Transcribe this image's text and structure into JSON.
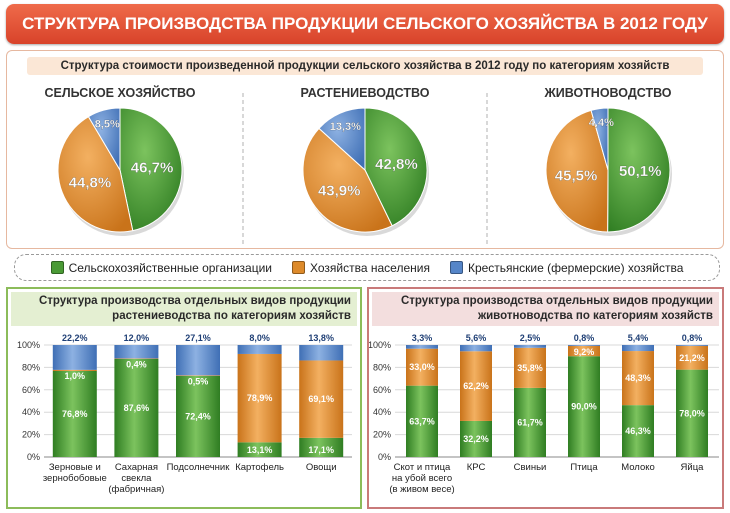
{
  "title": "СТРУКТУРА ПРОИЗВОДСТВА ПРОДУКЦИИ СЕЛЬСКОГО ХОЗЯЙСТВА В 2012 ГОДУ",
  "top_subtitle": "Структура стоимости произведенной продукции сельского хозяйства в 2012 году по категориям хозяйств",
  "colors": {
    "green": "#4a9a35",
    "orange": "#dd8a2a",
    "blue": "#5585c8"
  },
  "legend": [
    {
      "label": "Сельскохозяйственные организации",
      "color": "#4a9a35"
    },
    {
      "label": "Хозяйства населения",
      "color": "#dd8a2a"
    },
    {
      "label": "Крестьянские (фермерские) хозяйства",
      "color": "#5585c8"
    }
  ],
  "left_panel": {
    "title_line1": "Структура  производства отдельных видов продукции",
    "title_line2": "растениеводства по категориям хозяйств"
  },
  "right_panel": {
    "title_line1": "Структура  производства отдельных видов продукции",
    "title_line2": "животноводства по категориям хозяйств"
  },
  "chart_data": [
    {
      "type": "pie",
      "title": "СЕЛЬСКОЕ ХОЗЯЙСТВО",
      "categories": [
        "Сельскохозяйственные организации",
        "Хозяйства населения",
        "Крестьянские (фермерские) хозяйства"
      ],
      "values": [
        46.7,
        44.8,
        8.5
      ],
      "labels": [
        "46,7%",
        "44,8%",
        "8,5%"
      ]
    },
    {
      "type": "pie",
      "title": "РАСТЕНИЕВОДСТВО",
      "categories": [
        "Сельскохозяйственные организации",
        "Хозяйства населения",
        "Крестьянские (фермерские) хозяйства"
      ],
      "values": [
        42.8,
        43.9,
        13.3
      ],
      "labels": [
        "42,8%",
        "43,9%",
        "13,3%"
      ]
    },
    {
      "type": "pie",
      "title": "ЖИВОТНОВОДСТВО",
      "categories": [
        "Сельскохозяйственные организации",
        "Хозяйства населения",
        "Крестьянские (фермерские) хозяйства"
      ],
      "values": [
        50.1,
        45.5,
        4.4
      ],
      "labels": [
        "50,1%",
        "45,5%",
        "4,4%"
      ]
    },
    {
      "type": "bar",
      "stacked": true,
      "categories": [
        [
          "Зерновые и",
          "зернобобовые"
        ],
        [
          "Сахарная",
          "свекла",
          "(фабричная)"
        ],
        [
          "Подсолнечник"
        ],
        [
          "Картофель"
        ],
        [
          "Овощи"
        ]
      ],
      "y_ticks": [
        "0%",
        "20%",
        "40%",
        "60%",
        "80%",
        "100%"
      ],
      "ylim": [
        0,
        100
      ],
      "series": [
        {
          "name": "Сельскохозяйственные организации",
          "values": [
            76.8,
            87.6,
            72.4,
            13.1,
            17.1
          ],
          "labels": [
            "76,8%",
            "87,6%",
            "72,4%",
            "13,1%",
            "17,1%"
          ]
        },
        {
          "name": "Хозяйства населения",
          "values": [
            1.0,
            0.4,
            0.5,
            78.9,
            69.1
          ],
          "labels": [
            "1,0%",
            "0,4%",
            "0,5%",
            "78,9%",
            "69,1%"
          ]
        },
        {
          "name": "Крестьянские (фермерские) хозяйства",
          "values": [
            22.2,
            12.0,
            27.1,
            8.0,
            13.8
          ],
          "labels": [
            "22,2%",
            "12,0%",
            "27,1%",
            "8,0%",
            "13,8%"
          ]
        }
      ]
    },
    {
      "type": "bar",
      "stacked": true,
      "categories": [
        [
          "Скот и птица",
          "на убой всего",
          "(в живом весе)"
        ],
        [
          "КРС"
        ],
        [
          "Свиньи"
        ],
        [
          "Птица"
        ],
        [
          "Молоко"
        ],
        [
          "Яйца"
        ]
      ],
      "y_ticks": [
        "0%",
        "20%",
        "40%",
        "60%",
        "80%",
        "100%"
      ],
      "ylim": [
        0,
        100
      ],
      "series": [
        {
          "name": "Сельскохозяйственные организации",
          "values": [
            63.7,
            32.2,
            61.7,
            90.0,
            46.3,
            78.0
          ],
          "labels": [
            "63,7%",
            "32,2%",
            "61,7%",
            "90,0%",
            "46,3%",
            "78,0%"
          ]
        },
        {
          "name": "Хозяйства населения",
          "values": [
            33.0,
            62.2,
            35.8,
            9.2,
            48.3,
            21.2
          ],
          "labels": [
            "33,0%",
            "62,2%",
            "35,8%",
            "9,2%",
            "48,3%",
            "21,2%"
          ]
        },
        {
          "name": "Крестьянские (фермерские) хозяйства",
          "values": [
            3.3,
            5.6,
            2.5,
            0.8,
            5.4,
            0.8
          ],
          "labels": [
            "3,3%",
            "5,6%",
            "2,5%",
            "0,8%",
            "5,4%",
            "0,8%"
          ]
        }
      ]
    }
  ]
}
